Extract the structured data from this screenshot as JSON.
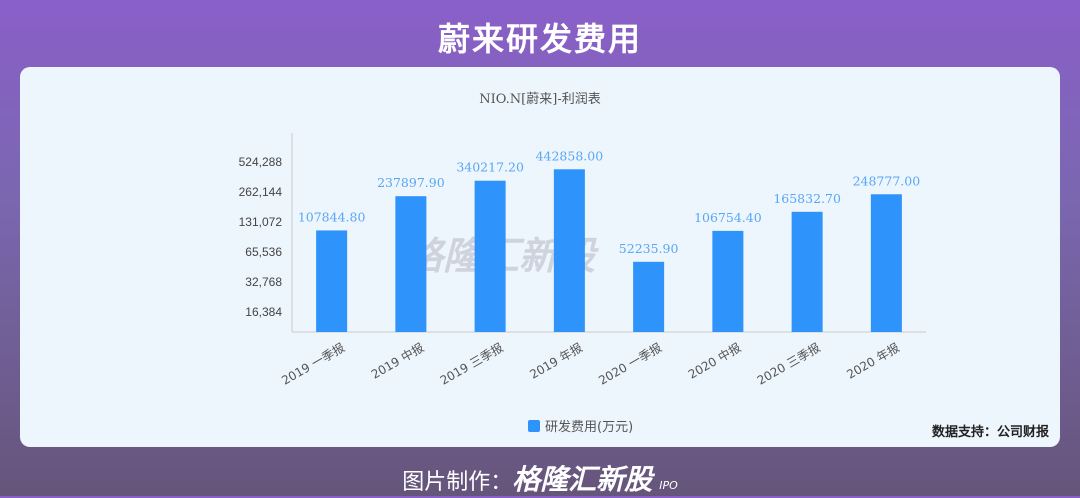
{
  "header": {
    "title": "蔚来研发费用"
  },
  "watermark": "格隆汇新股",
  "source": "数据支持：公司财报",
  "footer": {
    "label": "图片制作：",
    "brand": "格隆汇新股",
    "sub": "IPO"
  },
  "chart_data": {
    "type": "bar",
    "title": "NIO.N[蔚来]-利润表",
    "scale": "log2",
    "categories": [
      "2019 一季报",
      "2019 中报",
      "2019 三季报",
      "2019 年报",
      "2020 一季报",
      "2020 中报",
      "2020 三季报",
      "2020 年报"
    ],
    "series": [
      {
        "name": "研发费用(万元)",
        "color": "#2e93fa",
        "values": [
          107844.8,
          237897.9,
          340217.2,
          442858.0,
          52235.9,
          106754.4,
          165832.7,
          248777.0
        ],
        "labels": [
          "107844.80",
          "237897.90",
          "340217.20",
          "442858.00",
          "52235.90",
          "106754.40",
          "165832.70",
          "248777.00"
        ]
      }
    ],
    "yticks": [
      16384,
      32768,
      65536,
      131072,
      262144,
      524288
    ],
    "ytick_labels": [
      "16,384",
      "32,768",
      "65,536",
      "131,072",
      "262,144",
      "524,288"
    ],
    "legend": "bottom"
  }
}
